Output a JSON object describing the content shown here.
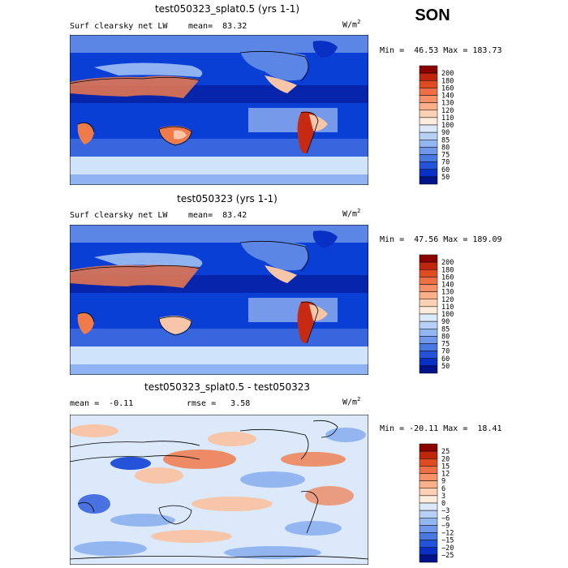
{
  "season": "SON",
  "units": "W/m",
  "units_sup": "2",
  "colors": {
    "ocean_blue": "#0a3fd6",
    "deep_blue": "#061fa0",
    "light_blue": "#cfe3fb",
    "mid_blue": "#8fb3f0",
    "peach": "#f7c5a8",
    "orange": "#ef7a4a",
    "red": "#c72a10"
  },
  "chart_data": [
    {
      "type": "heatmap",
      "title": "test050323_splat0.5 (yrs 1-1)",
      "subtitle": "Surf clearsky net LW",
      "stats_left": "mean=  83.32",
      "range_text": "Min =  46.53 Max = 183.73",
      "min": 46.53,
      "max": 183.73,
      "mean": 83.32,
      "colorbar": {
        "levels": [
          "200",
          "180",
          "160",
          "140",
          "130",
          "120",
          "110",
          "100",
          "90",
          "85",
          "80",
          "75",
          "70",
          "60",
          "50"
        ],
        "colors": [
          "#8b0000",
          "#c0260c",
          "#e04a22",
          "#f06e44",
          "#f79066",
          "#fbb08a",
          "#fcd0b4",
          "#fdebdc",
          "#dbe9fb",
          "#b8d0f6",
          "#94b6f0",
          "#6f98ea",
          "#4a78e2",
          "#2452d8",
          "#0a2fc4",
          "#00138a"
        ]
      }
    },
    {
      "type": "heatmap",
      "title": "test050323 (yrs 1-1)",
      "subtitle": "Surf clearsky net LW",
      "stats_left": "mean=  83.42",
      "range_text": "Min =  47.56 Max = 189.09",
      "min": 47.56,
      "max": 189.09,
      "mean": 83.42,
      "colorbar": {
        "levels": [
          "200",
          "180",
          "160",
          "140",
          "130",
          "120",
          "110",
          "100",
          "90",
          "85",
          "80",
          "75",
          "70",
          "60",
          "50"
        ],
        "colors": [
          "#8b0000",
          "#c0260c",
          "#e04a22",
          "#f06e44",
          "#f79066",
          "#fbb08a",
          "#fcd0b4",
          "#fdebdc",
          "#dbe9fb",
          "#b8d0f6",
          "#94b6f0",
          "#6f98ea",
          "#4a78e2",
          "#2452d8",
          "#0a2fc4",
          "#00138a"
        ]
      }
    },
    {
      "type": "heatmap",
      "title": "test050323_splat0.5 - test050323",
      "stats_left": "mean =  -0.11",
      "stats_mid": "rmse =   3.58",
      "range_text": "Min = -20.11 Max =  18.41",
      "min": -20.11,
      "max": 18.41,
      "mean": -0.11,
      "rmse": 3.58,
      "colorbar": {
        "levels": [
          "25",
          "20",
          "15",
          "12",
          "9",
          "6",
          "3",
          "0",
          "−3",
          "−6",
          "−9",
          "−12",
          "−15",
          "−20",
          "−25"
        ],
        "colors": [
          "#8b0000",
          "#c0260c",
          "#e04a22",
          "#f06e44",
          "#f79066",
          "#fbb08a",
          "#fcd0b4",
          "#fdebdc",
          "#dbe9fb",
          "#b8d0f6",
          "#94b6f0",
          "#6f98ea",
          "#4a78e2",
          "#2452d8",
          "#0a2fc4",
          "#00138a"
        ]
      }
    }
  ]
}
